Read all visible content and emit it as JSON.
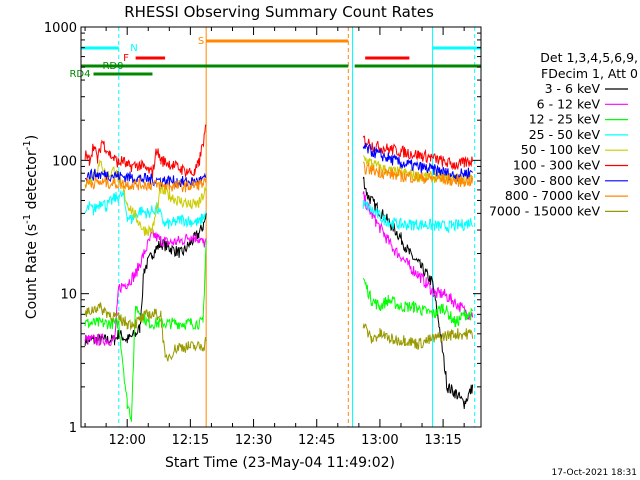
{
  "chart_data": {
    "type": "line",
    "title": "RHESSI Observing Summary Count Rates",
    "xlabel": "Start Time (23-May-04 11:49:02)",
    "ylabel": "Count Rate (s⁻¹ detector⁻¹)",
    "ylabel_parts": [
      "Count Rate (s",
      "-1",
      " detector",
      "-1",
      ")"
    ],
    "y_scale": "log",
    "ylim": [
      1,
      1000
    ],
    "y_ticks": [
      {
        "value": 1,
        "label": "1"
      },
      {
        "value": 10,
        "label": "10"
      },
      {
        "value": 100,
        "label": "100"
      },
      {
        "value": 1000,
        "label": "1000"
      }
    ],
    "xlim": [
      "11:49:02",
      "13:24:00"
    ],
    "x_ticks": [
      {
        "time": "12:00",
        "label": "12:00"
      },
      {
        "time": "12:15",
        "label": "12:15"
      },
      {
        "time": "12:30",
        "label": "12:30"
      },
      {
        "time": "12:45",
        "label": "12:45"
      },
      {
        "time": "13:00",
        "label": "13:00"
      },
      {
        "time": "13:15",
        "label": "13:15"
      }
    ],
    "legend_placement": "right",
    "legend_header": [
      "Det 1,3,4,5,6,9,",
      "FDecim 1, Att 0"
    ],
    "series": [
      {
        "name": "3 - 6 keV",
        "color": "#000000",
        "x": [
          "11:50",
          "11:57",
          "11:58",
          "12:00",
          "12:02",
          "12:03",
          "12:04",
          "12:06",
          "12:08",
          "12:10",
          "12:13",
          "12:15",
          "12:17",
          "12:18",
          "12:18:45",
          "12:56",
          "12:57",
          "12:59",
          "13:01",
          "13:03",
          "13:05",
          "13:07",
          "13:09",
          "13:11",
          "13:12:30",
          "13:14",
          "13:16",
          "13:18",
          "13:20",
          "13:22"
        ],
        "y": [
          4.5,
          4.5,
          5,
          4.5,
          5,
          5.5,
          15,
          20,
          24,
          22,
          20,
          24,
          28,
          32,
          38,
          75,
          55,
          45,
          38,
          32,
          26,
          20,
          17,
          14,
          12,
          6,
          2,
          1.8,
          1.5,
          2
        ]
      },
      {
        "name": "6 - 12 keV",
        "color": "#ff00ff",
        "x": [
          "11:50",
          "11:57",
          "11:58",
          "12:00",
          "12:02",
          "12:04",
          "12:06",
          "12:08",
          "12:10",
          "12:13",
          "12:15",
          "12:17",
          "12:18",
          "12:18:45",
          "12:56",
          "12:57",
          "12:59",
          "13:01",
          "13:03",
          "13:05",
          "13:07",
          "13:09",
          "13:11",
          "13:13",
          "13:15",
          "13:17",
          "13:19",
          "13:21",
          "13:22"
        ],
        "y": [
          4.5,
          4.5,
          11,
          12,
          14,
          20,
          28,
          25,
          24,
          25,
          27,
          26,
          24,
          24,
          55,
          45,
          35,
          28,
          22,
          19,
          16,
          14,
          12,
          10,
          10,
          9,
          8,
          7,
          7
        ]
      },
      {
        "name": "12 - 25 keV",
        "color": "#00ff00",
        "x": [
          "11:50",
          "11:55",
          "11:58",
          "12:00",
          "12:01",
          "12:02",
          "12:05",
          "12:10",
          "12:15",
          "12:18",
          "12:18:45",
          "12:56",
          "12:58",
          "13:00",
          "13:02",
          "13:05",
          "13:08",
          "13:10",
          "13:13",
          "13:15",
          "13:18",
          "13:20",
          "13:22"
        ],
        "y": [
          6,
          6,
          6,
          1.5,
          1.2,
          8,
          6,
          6,
          6,
          6,
          25,
          13,
          9,
          8,
          9,
          8,
          8,
          7.5,
          7,
          8,
          6,
          7,
          7
        ]
      },
      {
        "name": "25 - 50 keV",
        "color": "#00ffff",
        "x": [
          "11:50",
          "11:51",
          "11:52",
          "11:54",
          "11:55",
          "11:57",
          "11:59",
          "12:00",
          "12:01",
          "12:03",
          "12:05",
          "12:07",
          "12:09",
          "12:11",
          "12:13",
          "12:15",
          "12:17",
          "12:18:45",
          "12:56",
          "12:57",
          "12:59",
          "13:01",
          "13:03",
          "13:05",
          "13:08",
          "13:11",
          "13:14",
          "13:17",
          "13:20",
          "13:22"
        ],
        "y": [
          40,
          45,
          42,
          50,
          45,
          52,
          55,
          38,
          36,
          42,
          40,
          44,
          33,
          34,
          36,
          35,
          34,
          40,
          47,
          45,
          40,
          36,
          34,
          33,
          33,
          33,
          32,
          32,
          33,
          35
        ]
      },
      {
        "name": "50 - 100 keV",
        "color": "#cccc00",
        "x": [
          "11:50",
          "11:51",
          "11:52",
          "11:54",
          "11:55",
          "11:57",
          "11:59",
          "12:00",
          "12:02",
          "12:04",
          "12:06",
          "12:08",
          "12:10",
          "12:12",
          "12:14",
          "12:15",
          "12:17",
          "12:18:45",
          "12:56",
          "12:58",
          "13:00",
          "13:03",
          "13:06",
          "13:09",
          "13:12",
          "13:15",
          "13:18",
          "13:20",
          "13:22"
        ],
        "y": [
          65,
          70,
          80,
          95,
          75,
          85,
          60,
          48,
          38,
          30,
          30,
          60,
          55,
          50,
          48,
          46,
          47,
          60,
          105,
          95,
          88,
          82,
          80,
          76,
          75,
          74,
          73,
          71,
          72
        ]
      },
      {
        "name": "100 - 300 keV",
        "color": "#ff0000",
        "x": [
          "11:50",
          "11:51",
          "11:52",
          "11:53",
          "11:54",
          "11:56",
          "11:58",
          "11:59",
          "12:00",
          "12:03",
          "12:06",
          "12:07",
          "12:08",
          "12:10",
          "12:13",
          "12:16",
          "12:17",
          "12:18:45",
          "12:56",
          "12:58",
          "13:00",
          "13:03",
          "13:06",
          "13:09",
          "13:12",
          "13:15",
          "13:18",
          "13:20",
          "13:22"
        ],
        "y": [
          110,
          100,
          130,
          100,
          140,
          110,
          95,
          100,
          90,
          92,
          80,
          120,
          100,
          95,
          85,
          80,
          95,
          175,
          145,
          130,
          125,
          120,
          115,
          110,
          105,
          98,
          92,
          95,
          100
        ]
      },
      {
        "name": "300 - 800 keV",
        "color": "#0000ff",
        "x": [
          "11:50",
          "11:55",
          "12:00",
          "12:05",
          "12:10",
          "12:15",
          "12:18:45",
          "12:56",
          "13:00",
          "13:05",
          "13:10",
          "13:15",
          "13:18",
          "13:20",
          "13:22"
        ],
        "y": [
          78,
          78,
          75,
          72,
          70,
          68,
          72,
          125,
          110,
          95,
          88,
          82,
          76,
          80,
          82
        ]
      },
      {
        "name": "800 - 7000 keV",
        "color": "#ff8800",
        "x": [
          "11:50",
          "11:55",
          "12:00",
          "12:05",
          "12:10",
          "12:15",
          "12:18:45",
          "12:56",
          "13:00",
          "13:05",
          "13:10",
          "13:15",
          "13:18",
          "13:20",
          "13:22"
        ],
        "y": [
          68,
          68,
          66,
          66,
          64,
          64,
          68,
          88,
          82,
          76,
          74,
          72,
          70,
          70,
          70
        ]
      },
      {
        "name": "7000 - 15000 keV",
        "color": "#999900",
        "x": [
          "11:50",
          "11:53",
          "11:56",
          "11:58",
          "12:00",
          "12:02",
          "12:05",
          "12:08",
          "12:09",
          "12:12",
          "12:15",
          "12:18",
          "12:18:45",
          "12:56",
          "12:58",
          "13:00",
          "13:03",
          "13:06",
          "13:09",
          "13:12",
          "13:15",
          "13:18",
          "13:20",
          "13:22"
        ],
        "y": [
          7,
          8,
          7,
          6.5,
          6,
          6,
          7,
          7,
          3.2,
          4,
          4,
          4,
          4.5,
          6,
          4.5,
          5,
          4.5,
          4.5,
          4.2,
          4.5,
          4.8,
          5,
          5,
          5
        ]
      }
    ],
    "flag_bars": [
      {
        "label": "N",
        "color": "#00ffff",
        "segments": [
          [
            "11:49:02",
            "11:58:00"
          ],
          [
            "13:12:30",
            "13:24:00"
          ]
        ]
      },
      {
        "label": "S",
        "color": "#ff8800",
        "segments": [
          [
            "12:18:45",
            "12:52:30"
          ]
        ]
      },
      {
        "label": "F",
        "color": "#ff0000",
        "segments": [
          [
            "12:02:00",
            "12:09:00"
          ],
          [
            "12:56:30",
            "13:07:00"
          ]
        ]
      },
      {
        "label": "RD0",
        "color": "#008800",
        "segments": [
          [
            "11:49:02",
            "12:52:30"
          ],
          [
            "12:54:00",
            "13:24:00"
          ]
        ]
      },
      {
        "label": "RD4",
        "color": "#008800",
        "segments": [
          [
            "11:52:00",
            "12:06:00"
          ]
        ]
      }
    ],
    "vertical_lines": [
      {
        "time": "11:58:00",
        "color": "#00ffff",
        "style": "dashed"
      },
      {
        "time": "12:18:45",
        "color": "#ff8800",
        "style": "solid"
      },
      {
        "time": "12:52:30",
        "color": "#ff8800",
        "style": "dashed"
      },
      {
        "time": "12:53:30",
        "color": "#00ffff",
        "style": "solid"
      },
      {
        "time": "13:12:30",
        "color": "#00ffff",
        "style": "solid"
      },
      {
        "time": "13:22:30",
        "color": "#00ffff",
        "style": "dashed"
      }
    ],
    "footer_timestamp": "17-Oct-2021 18:31"
  }
}
